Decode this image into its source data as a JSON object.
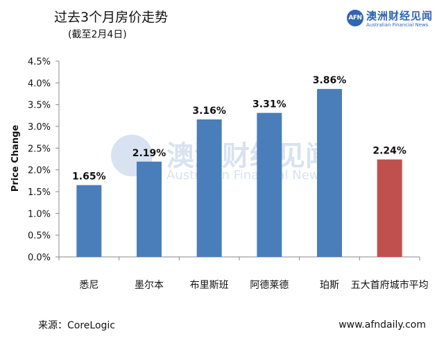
{
  "title": "过去3个月房价走势",
  "subtitle": "(截至2月4日)",
  "logo": {
    "mark": "AFN",
    "cn": "澳洲财经见闻",
    "en": "Australian Financial News"
  },
  "source": "来源：CoreLogic",
  "url": "www.afndaily.com",
  "watermark": {
    "cn": "澳洲财经见闻",
    "en": "Australian Financial News"
  },
  "colors": {
    "bar": "#4a7ebb",
    "highlight": "#c0504d"
  },
  "chart_data": {
    "type": "bar",
    "categories": [
      "悉尼",
      "墨尔本",
      "布里斯班",
      "阿德莱德",
      "珀斯",
      "五大首府城市平均"
    ],
    "values": [
      1.65,
      2.19,
      3.16,
      3.31,
      3.86,
      2.24
    ],
    "value_labels": [
      "1.65%",
      "2.19%",
      "3.16%",
      "3.31%",
      "3.86%",
      "2.24%"
    ],
    "ylabel": "Price Change",
    "ylim": [
      0,
      4.5
    ],
    "yticks": [
      "0.0%",
      "0.5%",
      "1.0%",
      "1.5%",
      "2.0%",
      "2.5%",
      "3.0%",
      "3.5%",
      "4.0%",
      "4.5%"
    ],
    "highlight_index": 5,
    "grid": false
  }
}
